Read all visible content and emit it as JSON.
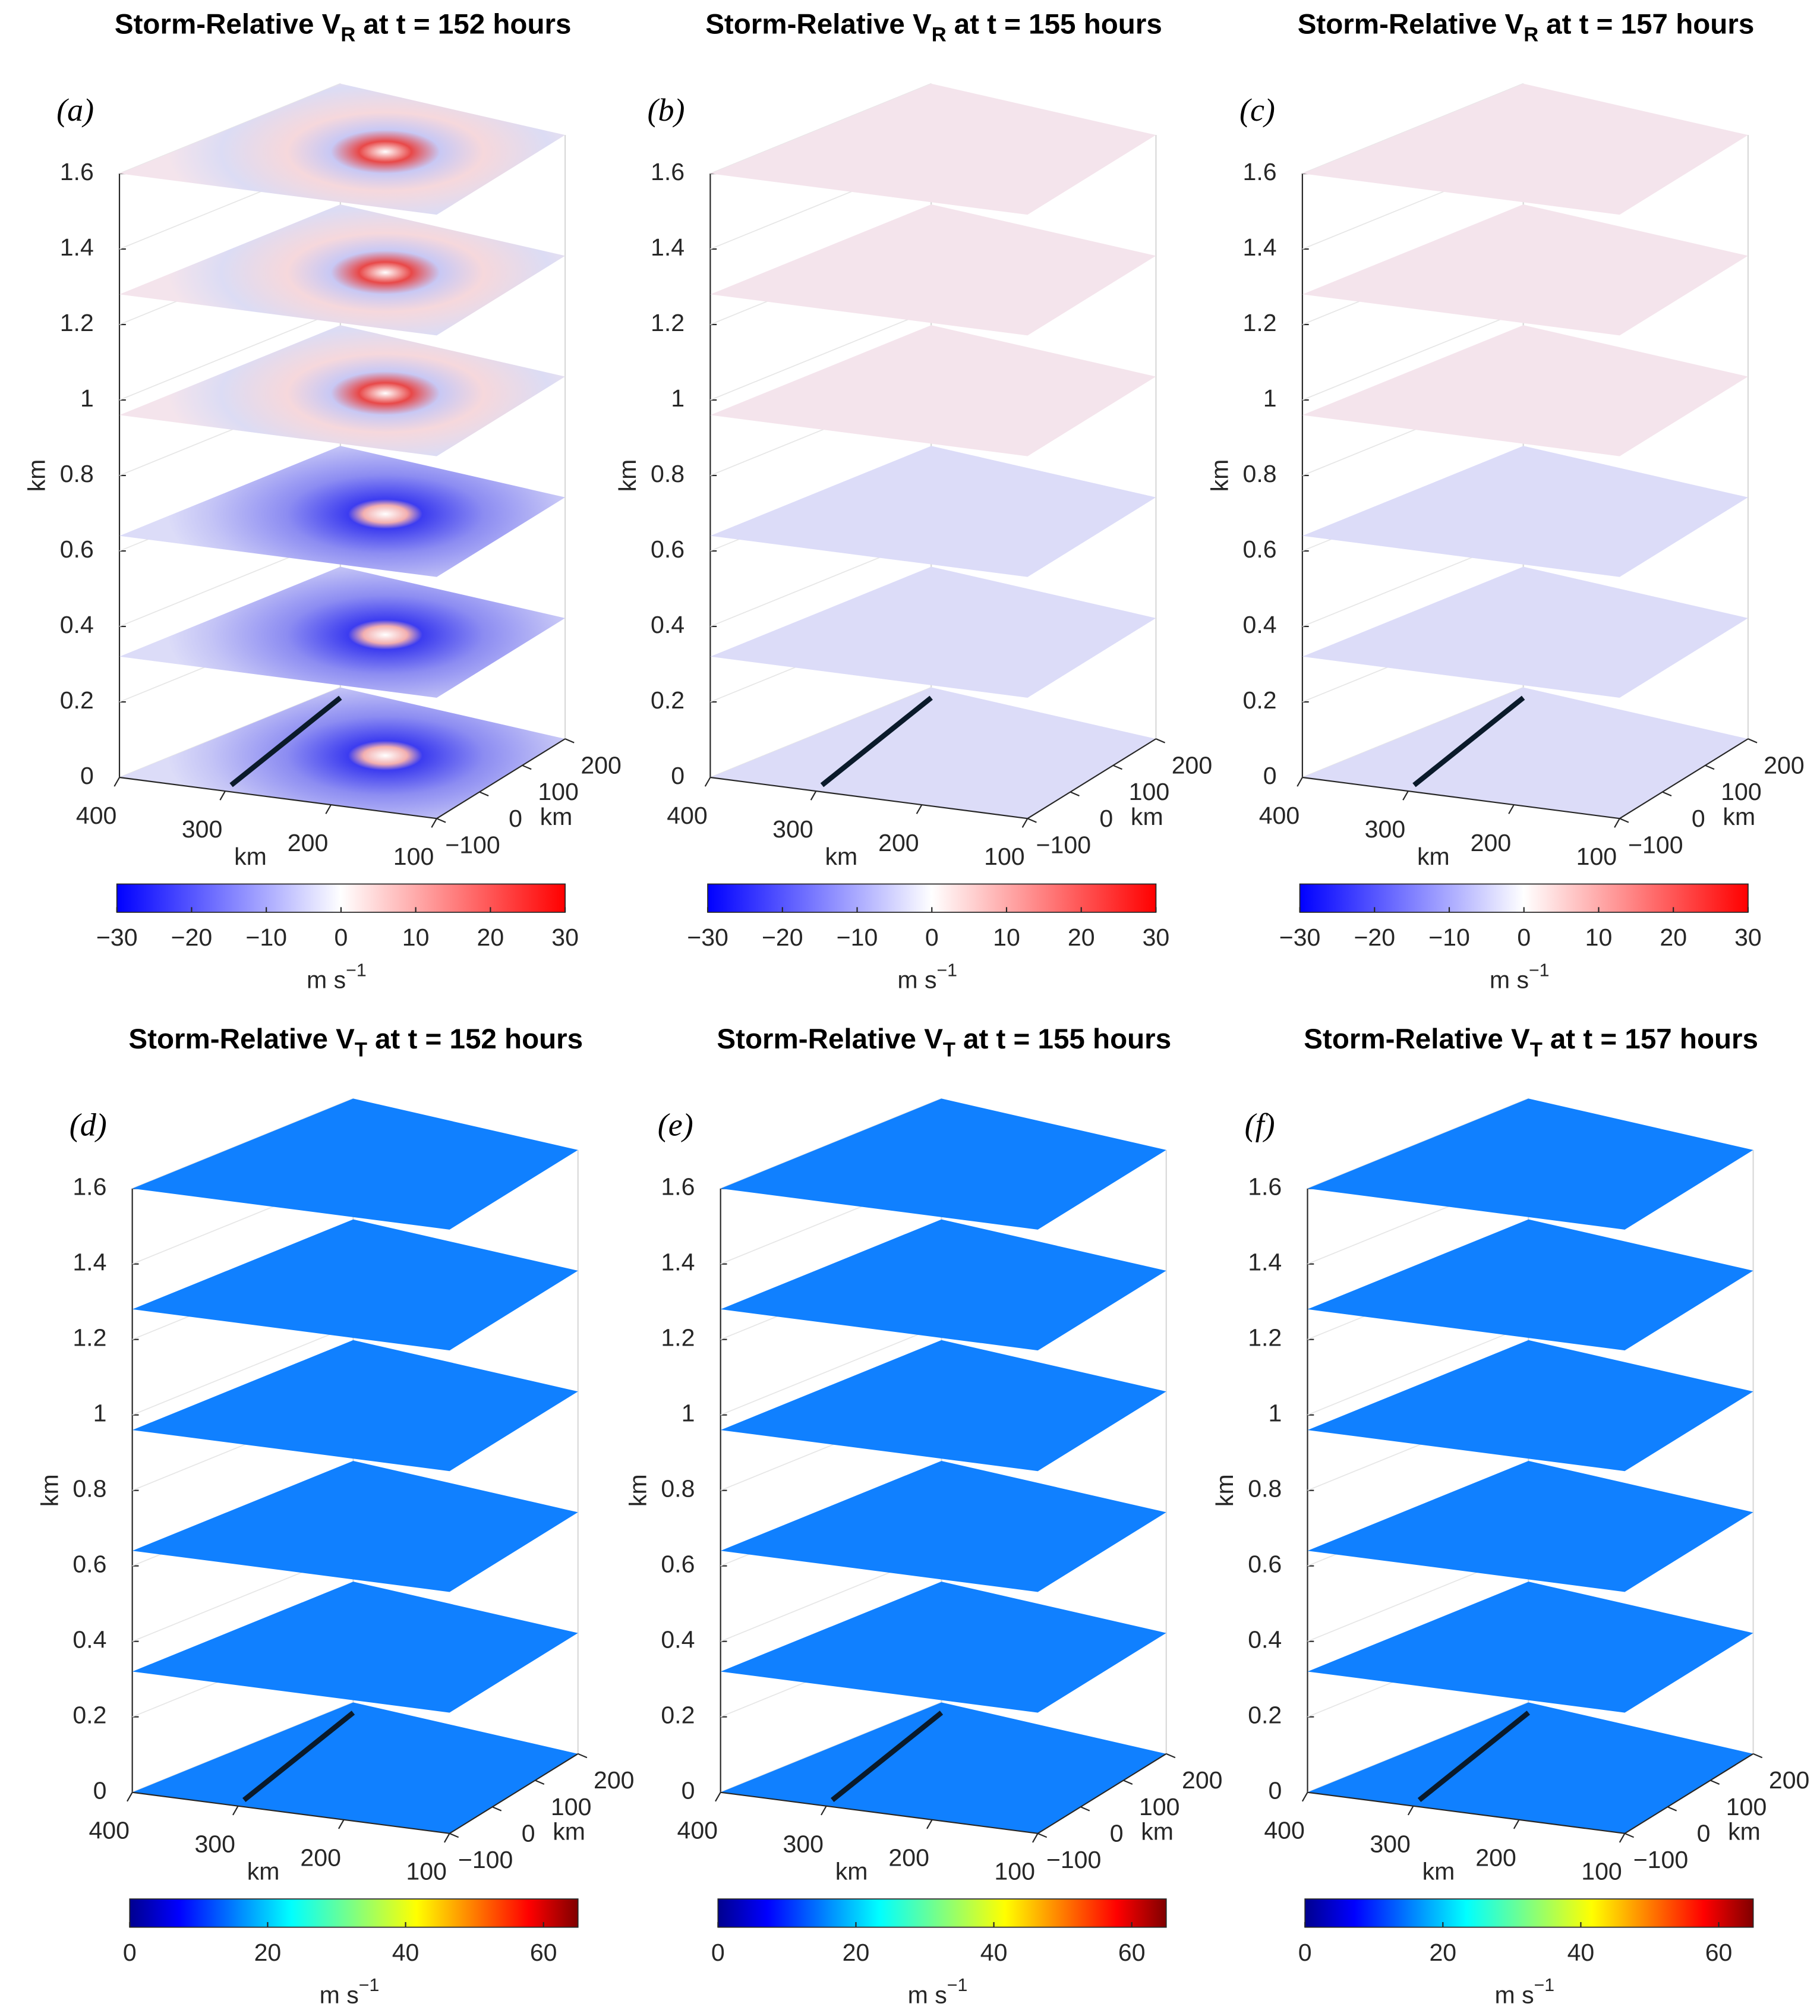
{
  "chart_data": [
    {
      "type": "slices",
      "title": "Storm-Relative V",
      "title_subscript": "R",
      "title_rest": "at t = 152 hours",
      "panel_label": "(a)",
      "zlabel": "km",
      "zlim": [
        0,
        1.6
      ],
      "zticks": [
        0,
        0.2,
        0.4,
        0.6,
        0.8,
        1,
        1.2,
        1.4,
        1.6
      ],
      "xlabel": "km",
      "xlim": [
        400,
        100
      ],
      "xticks": [
        400,
        300,
        200,
        100
      ],
      "ylabel": "km",
      "ylim": [
        -100,
        200
      ],
      "yticks": [
        {
          "value": -100,
          "label": "−100"
        },
        0,
        100,
        200
      ],
      "levels": [
        0,
        0.32,
        0.64,
        0.96,
        1.28,
        1.6
      ],
      "colormap": "bwr",
      "clim": [
        -30,
        30
      ],
      "cticks": [
        {
          "value": -30,
          "label": "−30"
        },
        {
          "value": -20,
          "label": "−20"
        },
        {
          "value": -10,
          "label": "−10"
        },
        0,
        10,
        20,
        30
      ],
      "clabel": "m s",
      "clabel_superscript": "−1"
    },
    {
      "type": "slices",
      "title": "Storm-Relative V",
      "title_subscript": "R",
      "title_rest": "at t = 155 hours",
      "panel_label": "(b)",
      "zlabel": "km",
      "zlim": [
        0,
        1.6
      ],
      "zticks": [
        0,
        0.2,
        0.4,
        0.6,
        0.8,
        1,
        1.2,
        1.4,
        1.6
      ],
      "xlabel": "km",
      "xlim": [
        400,
        100
      ],
      "xticks": [
        400,
        300,
        200,
        100
      ],
      "ylabel": "km",
      "ylim": [
        -100,
        200
      ],
      "yticks": [
        {
          "value": -100,
          "label": "−100"
        },
        0,
        100,
        200
      ],
      "levels": [
        0,
        0.32,
        0.64,
        0.96,
        1.28,
        1.6
      ],
      "colormap": "bwr",
      "clim": [
        -30,
        30
      ],
      "cticks": [
        {
          "value": -30,
          "label": "−30"
        },
        {
          "value": -20,
          "label": "−20"
        },
        {
          "value": -10,
          "label": "−10"
        },
        0,
        10,
        20,
        30
      ],
      "clabel": "m s",
      "clabel_superscript": "−1"
    },
    {
      "type": "slices",
      "title": "Storm-Relative V",
      "title_subscript": "R",
      "title_rest": "at t = 157 hours",
      "panel_label": "(c)",
      "zlabel": "km",
      "zlim": [
        0,
        1.6
      ],
      "zticks": [
        0,
        0.2,
        0.4,
        0.6,
        0.8,
        1,
        1.2,
        1.4,
        1.6
      ],
      "xlabel": "km",
      "xlim": [
        400,
        100
      ],
      "xticks": [
        400,
        300,
        200,
        100
      ],
      "ylabel": "km",
      "ylim": [
        -100,
        200
      ],
      "yticks": [
        {
          "value": -100,
          "label": "−100"
        },
        0,
        100,
        200
      ],
      "levels": [
        0,
        0.32,
        0.64,
        0.96,
        1.28,
        1.6
      ],
      "colormap": "bwr",
      "clim": [
        -30,
        30
      ],
      "cticks": [
        {
          "value": -30,
          "label": "−30"
        },
        {
          "value": -20,
          "label": "−20"
        },
        {
          "value": -10,
          "label": "−10"
        },
        0,
        10,
        20,
        30
      ],
      "clabel": "m s",
      "clabel_superscript": "−1"
    },
    {
      "type": "slices",
      "title": "Storm-Relative V",
      "title_subscript": "T",
      "title_rest": "at t = 152 hours",
      "panel_label": "(d)",
      "zlabel": "km",
      "zlim": [
        0,
        1.6
      ],
      "zticks": [
        0,
        0.2,
        0.4,
        0.6,
        0.8,
        1,
        1.2,
        1.4,
        1.6
      ],
      "xlabel": "km",
      "xlim": [
        400,
        100
      ],
      "xticks": [
        400,
        300,
        200,
        100
      ],
      "ylabel": "km",
      "ylim": [
        -100,
        200
      ],
      "yticks": [
        {
          "value": -100,
          "label": "−100"
        },
        0,
        100,
        200
      ],
      "levels": [
        0,
        0.32,
        0.64,
        0.96,
        1.28,
        1.6
      ],
      "colormap": "jet",
      "clim": [
        0,
        65
      ],
      "cticks": [
        0,
        20,
        40,
        60
      ],
      "clabel": "m s",
      "clabel_superscript": "−1"
    },
    {
      "type": "slices",
      "title": "Storm-Relative V",
      "title_subscript": "T",
      "title_rest": "at t = 155 hours",
      "panel_label": "(e)",
      "zlabel": "km",
      "zlim": [
        0,
        1.6
      ],
      "zticks": [
        0,
        0.2,
        0.4,
        0.6,
        0.8,
        1,
        1.2,
        1.4,
        1.6
      ],
      "xlabel": "km",
      "xlim": [
        400,
        100
      ],
      "xticks": [
        400,
        300,
        200,
        100
      ],
      "ylabel": "km",
      "ylim": [
        -100,
        200
      ],
      "yticks": [
        {
          "value": -100,
          "label": "−100"
        },
        0,
        100,
        200
      ],
      "levels": [
        0,
        0.32,
        0.64,
        0.96,
        1.28,
        1.6
      ],
      "colormap": "jet",
      "clim": [
        0,
        65
      ],
      "cticks": [
        0,
        20,
        40,
        60
      ],
      "clabel": "m s",
      "clabel_superscript": "−1"
    },
    {
      "type": "slices",
      "title": "Storm-Relative V",
      "title_subscript": "T",
      "title_rest": "at t = 157 hours",
      "panel_label": "(f)",
      "zlabel": "km",
      "zlim": [
        0,
        1.6
      ],
      "zticks": [
        0,
        0.2,
        0.4,
        0.6,
        0.8,
        1,
        1.2,
        1.4,
        1.6
      ],
      "xlabel": "km",
      "xlim": [
        400,
        100
      ],
      "xticks": [
        400,
        300,
        200,
        100
      ],
      "ylabel": "km",
      "ylim": [
        -100,
        200
      ],
      "yticks": [
        {
          "value": -100,
          "label": "−100"
        },
        0,
        100,
        200
      ],
      "levels": [
        0,
        0.32,
        0.64,
        0.96,
        1.28,
        1.6
      ],
      "colormap": "jet",
      "clim": [
        0,
        65
      ],
      "cticks": [
        0,
        20,
        40,
        60
      ],
      "clabel": "m s",
      "clabel_superscript": "−1"
    }
  ]
}
